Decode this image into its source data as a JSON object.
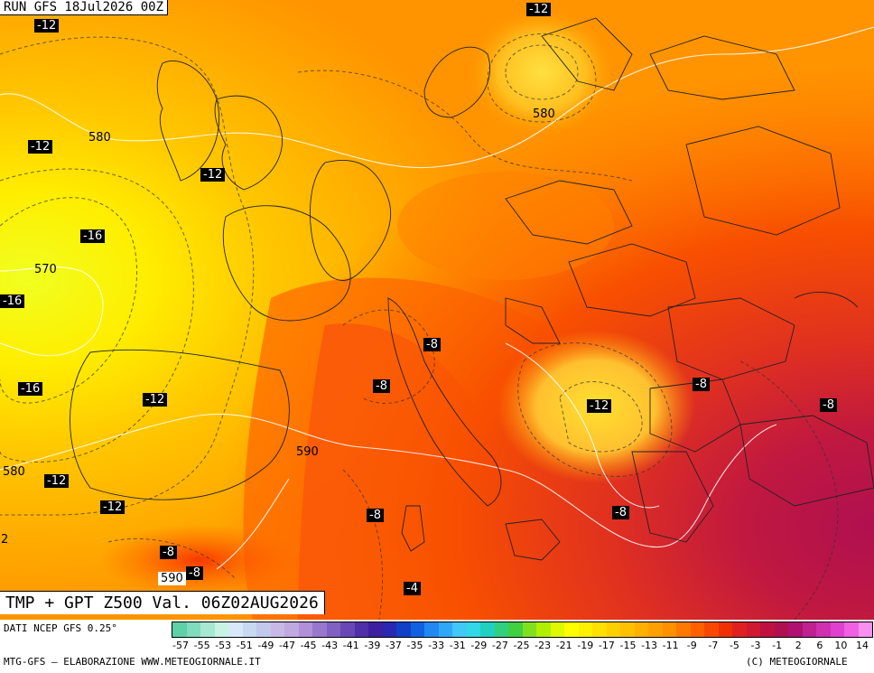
{
  "header": {
    "run_label": "RUN GFS 18Jul2026 00Z"
  },
  "title": {
    "text": "TMP + GPT Z500 Val. 06Z02AUG2026"
  },
  "footer": {
    "source": "DATI NCEP GFS 0.25°",
    "credit_left": "MTG-GFS — ELABORAZIONE WWW.METEOGIORNALE.IT",
    "credit_right": "(C) METEOGIORNALE"
  },
  "temp_labels": [
    "-12",
    "-12",
    "-12",
    "-12",
    "-16",
    "-16",
    "-16",
    "-12",
    "-12",
    "-12",
    "-8",
    "-8",
    "-8",
    "-12",
    "-8",
    "-4",
    "-8",
    "-8",
    "-8",
    "-8",
    "2"
  ],
  "gpt_labels": [
    "580",
    "580",
    "570",
    "590",
    "580",
    "590"
  ],
  "scale": {
    "ticks": [
      "-57",
      "-55",
      "-53",
      "-51",
      "-49",
      "-47",
      "-45",
      "-43",
      "-41",
      "-39",
      "-37",
      "-35",
      "-33",
      "-31",
      "-29",
      "-27",
      "-25",
      "-23",
      "-21",
      "-19",
      "-17",
      "-15",
      "-13",
      "-11",
      "-9",
      "-7",
      "-5",
      "-3",
      "-1",
      "2",
      "6",
      "10",
      "14"
    ],
    "colors": [
      "#5fd0a8",
      "#7fdcbc",
      "#a7e8d2",
      "#c8f2e4",
      "#d8e8f8",
      "#c8d8f0",
      "#c0c8ec",
      "#c8b8e8",
      "#c0a8e0",
      "#b090d8",
      "#9878cc",
      "#8060c0",
      "#6848b4",
      "#5030a8",
      "#3c20a0",
      "#2828b0",
      "#1040c8",
      "#1060e0",
      "#2088f0",
      "#30a8f8",
      "#40c8f8",
      "#30d8e8",
      "#20d0c0",
      "#30d080",
      "#40d040",
      "#80e020",
      "#b0f000",
      "#e0f800",
      "#ffff00",
      "#fff000",
      "#ffe000",
      "#ffd000",
      "#ffc000",
      "#ffb000",
      "#ffa000",
      "#ff9000",
      "#ff7800",
      "#ff6000",
      "#f84800",
      "#f03000",
      "#e02020",
      "#d01830",
      "#c01040",
      "#b01050",
      "#b01070",
      "#c02090",
      "#d030b0",
      "#e040d0",
      "#f060e0",
      "#f890f0"
    ]
  },
  "colors": {
    "label_bg": "#000000",
    "label_fg": "#ffffff"
  }
}
